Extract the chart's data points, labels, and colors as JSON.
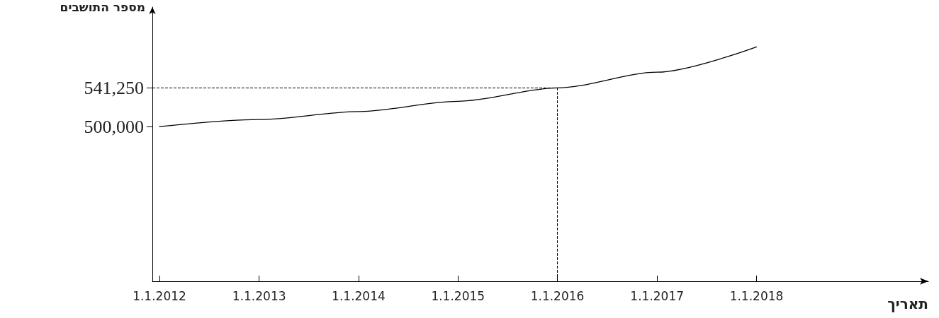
{
  "chart_data": {
    "type": "line",
    "xlabel": "תאריך",
    "ylabel": "מספר התושבים",
    "x": [
      "2012-01-01",
      "2013-01-01",
      "2014-01-01",
      "2015-01-01",
      "2016-01-01",
      "2017-01-01",
      "2018-01-01"
    ],
    "series": [
      {
        "color": "#000000",
        "values": [
          500000,
          507500,
          516000,
          527000,
          541250,
          558000,
          585000
        ]
      }
    ],
    "xlim": [
      "2011-12-06",
      "2019-09-24"
    ],
    "xticks": [
      {
        "value": "2012-01-01",
        "label": "1.1.2012"
      },
      {
        "value": "2013-01-01",
        "label": "1.1.2013"
      },
      {
        "value": "2014-01-01",
        "label": "1.1.2014"
      },
      {
        "value": "2015-01-01",
        "label": "1.1.2015"
      },
      {
        "value": "2016-01-01",
        "label": "1.1.2016"
      },
      {
        "value": "2017-01-01",
        "label": "1.1.2017"
      },
      {
        "value": "2018-01-01",
        "label": "1.1.2018"
      }
    ],
    "ylim": [
      335000,
      627500
    ],
    "yticks": [
      {
        "value": 500000,
        "label": "500,000"
      },
      {
        "value": 541250,
        "label": "541,250"
      }
    ],
    "ref_lines": [
      {
        "axis": "y",
        "value": 541250,
        "line_style": "dashed",
        "color": "#000000"
      },
      {
        "axis": "x",
        "value": "2016-01-01",
        "line_style": "dashed",
        "color": "#000000"
      }
    ],
    "grid": false,
    "marker": "none",
    "line_style": "solid"
  }
}
